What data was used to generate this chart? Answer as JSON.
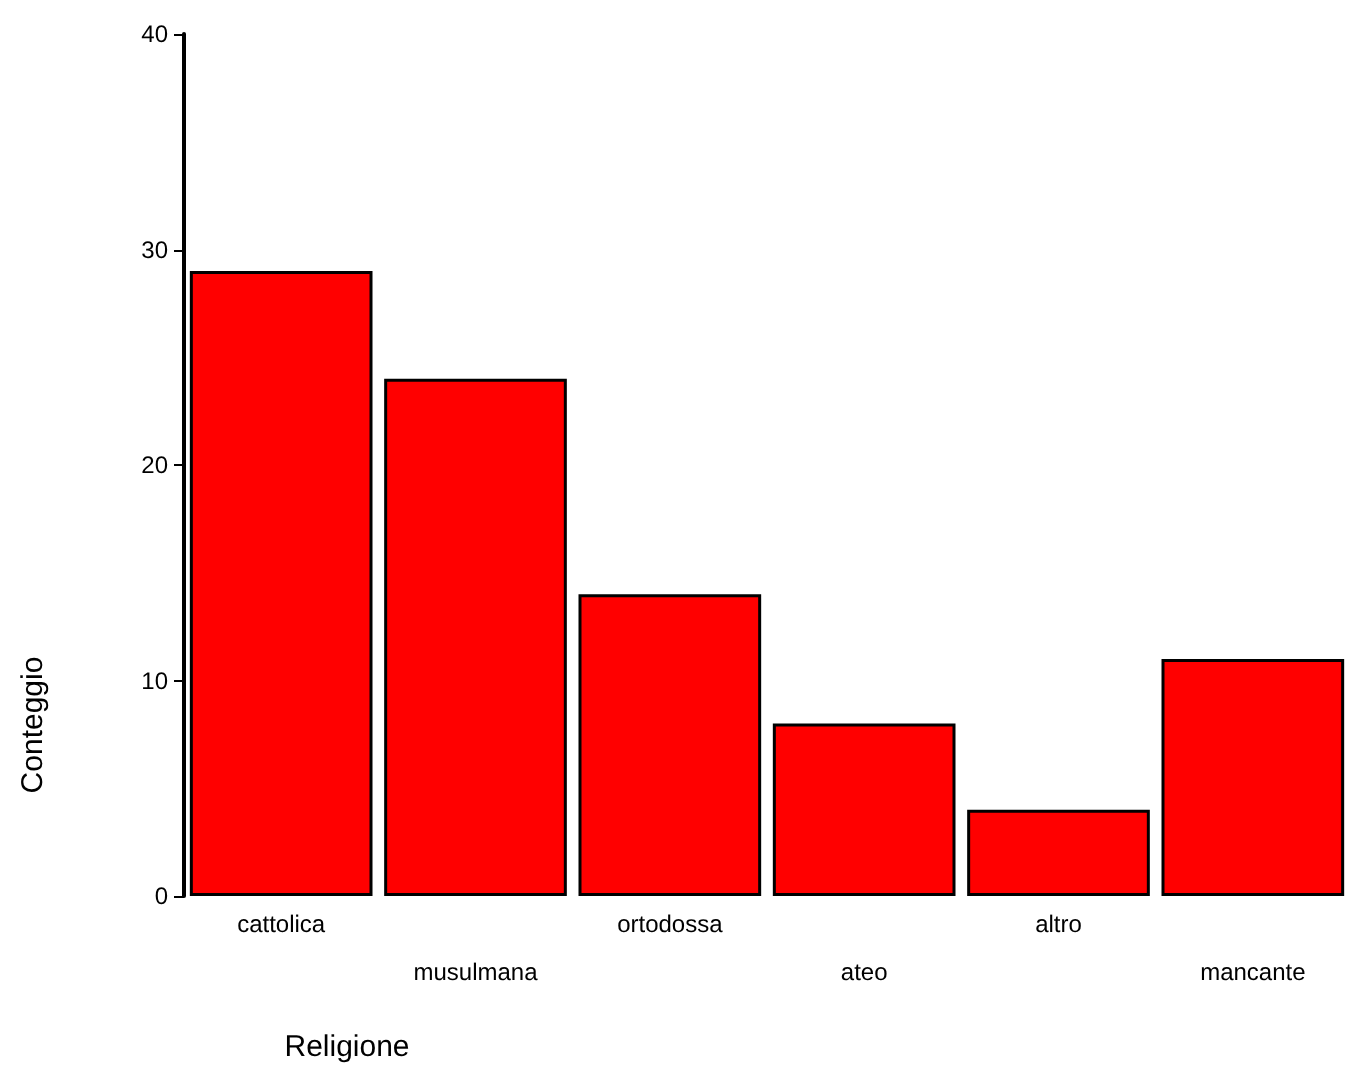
{
  "chart_data": {
    "type": "bar",
    "xlabel": "Religione",
    "ylabel": "Conteggio",
    "categories": [
      "cattolica",
      "musulmana",
      "ortodossa",
      "ateo",
      "altro",
      "mancante"
    ],
    "values": [
      29,
      24,
      14,
      8,
      4,
      11
    ],
    "color": "#ff0000",
    "ylim": [
      0,
      40
    ],
    "yticks": [
      0,
      10,
      20,
      30,
      40
    ],
    "grid": false
  }
}
